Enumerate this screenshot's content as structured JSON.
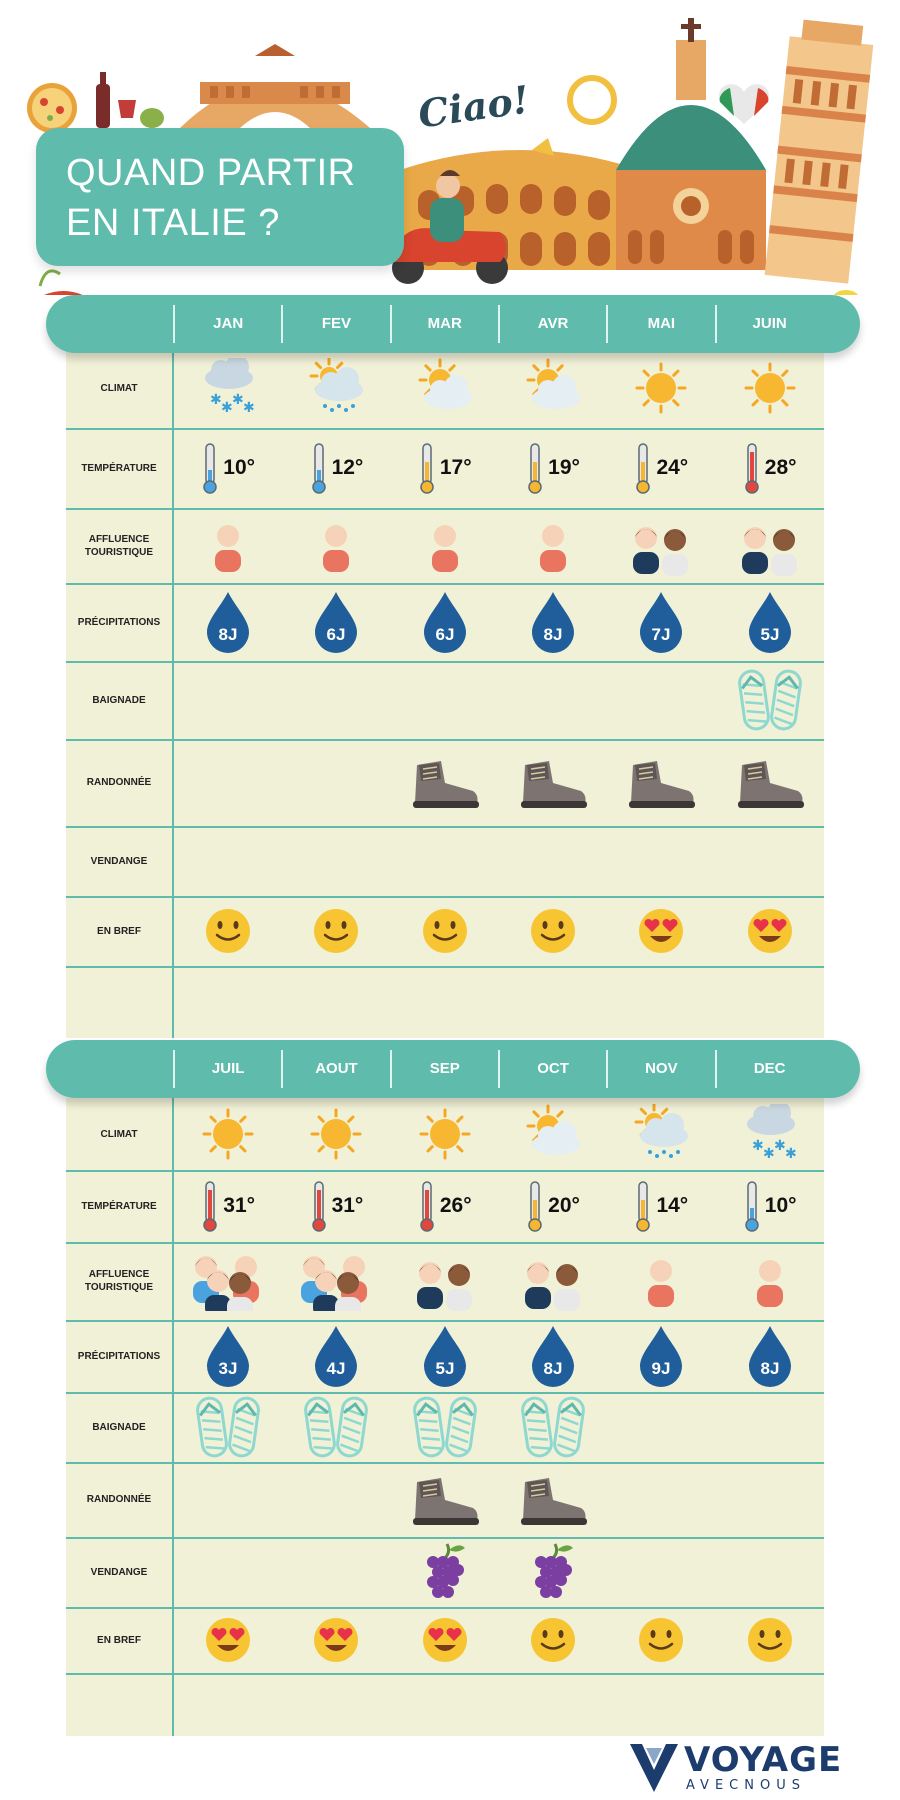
{
  "title": {
    "line1": "QUAND PARTIR",
    "line2": "EN ITALIE ?"
  },
  "decor_text": "Ciao!",
  "brand": {
    "name": "VOYAGE",
    "sub": "AVECNOUS"
  },
  "colors": {
    "teal": "#5fbcad",
    "panel": "#f1f1d8",
    "drop": "#1f5e9a",
    "text": "#222222"
  },
  "row_labels": {
    "climat": "CLIMAT",
    "temperature": "TEMPÉRATURE",
    "affluence": "AFFLUENCE TOURISTIQUE",
    "precipitations": "PRÉCIPITATIONS",
    "baignade": "BAIGNADE",
    "randonnee": "RANDONNÉE",
    "vendange": "VENDANGE",
    "en_bref": "EN BREF"
  },
  "halves": [
    {
      "months": [
        {
          "name": "JAN",
          "climat": "snow-cloud-icon",
          "temp": "10°",
          "temp_level": "cold",
          "affluence": "low",
          "precip": "8J",
          "baignade": false,
          "randonnee": false,
          "vendange": false,
          "mood": "smile"
        },
        {
          "name": "FEV",
          "climat": "sun-rain-cloud-icon",
          "temp": "12°",
          "temp_level": "cold",
          "affluence": "low",
          "precip": "6J",
          "baignade": false,
          "randonnee": false,
          "vendange": false,
          "mood": "smile"
        },
        {
          "name": "MAR",
          "climat": "sun-cloud-icon",
          "temp": "17°",
          "temp_level": "mild",
          "affluence": "low",
          "precip": "6J",
          "baignade": false,
          "randonnee": true,
          "vendange": false,
          "mood": "smile"
        },
        {
          "name": "AVR",
          "climat": "sun-cloud-icon",
          "temp": "19°",
          "temp_level": "mild",
          "affluence": "low",
          "precip": "8J",
          "baignade": false,
          "randonnee": true,
          "vendange": false,
          "mood": "smile"
        },
        {
          "name": "MAI",
          "climat": "sun-icon",
          "temp": "24°",
          "temp_level": "mild",
          "affluence": "medium",
          "precip": "7J",
          "baignade": false,
          "randonnee": true,
          "vendange": false,
          "mood": "love"
        },
        {
          "name": "JUIN",
          "climat": "sun-icon",
          "temp": "28°",
          "temp_level": "hot",
          "affluence": "medium",
          "precip": "5J",
          "baignade": true,
          "randonnee": true,
          "vendange": false,
          "mood": "love"
        }
      ]
    },
    {
      "months": [
        {
          "name": "JUIL",
          "climat": "sun-icon",
          "temp": "31°",
          "temp_level": "hot",
          "affluence": "high",
          "precip": "3J",
          "baignade": true,
          "randonnee": false,
          "vendange": false,
          "mood": "love"
        },
        {
          "name": "AOUT",
          "climat": "sun-icon",
          "temp": "31°",
          "temp_level": "hot",
          "affluence": "high",
          "precip": "4J",
          "baignade": true,
          "randonnee": false,
          "vendange": false,
          "mood": "love"
        },
        {
          "name": "SEP",
          "climat": "sun-icon",
          "temp": "26°",
          "temp_level": "hot",
          "affluence": "medium",
          "precip": "5J",
          "baignade": true,
          "randonnee": true,
          "vendange": true,
          "mood": "love"
        },
        {
          "name": "OCT",
          "climat": "sun-cloud-icon",
          "temp": "20°",
          "temp_level": "mild",
          "affluence": "medium",
          "precip": "8J",
          "baignade": true,
          "randonnee": true,
          "vendange": true,
          "mood": "smile"
        },
        {
          "name": "NOV",
          "climat": "sun-rain-cloud-icon",
          "temp": "14°",
          "temp_level": "mild",
          "affluence": "low",
          "precip": "9J",
          "baignade": false,
          "randonnee": false,
          "vendange": false,
          "mood": "smile"
        },
        {
          "name": "DEC",
          "climat": "snow-cloud-icon",
          "temp": "10°",
          "temp_level": "cold",
          "affluence": "low",
          "precip": "8J",
          "baignade": false,
          "randonnee": false,
          "vendange": false,
          "mood": "smile"
        }
      ]
    }
  ]
}
